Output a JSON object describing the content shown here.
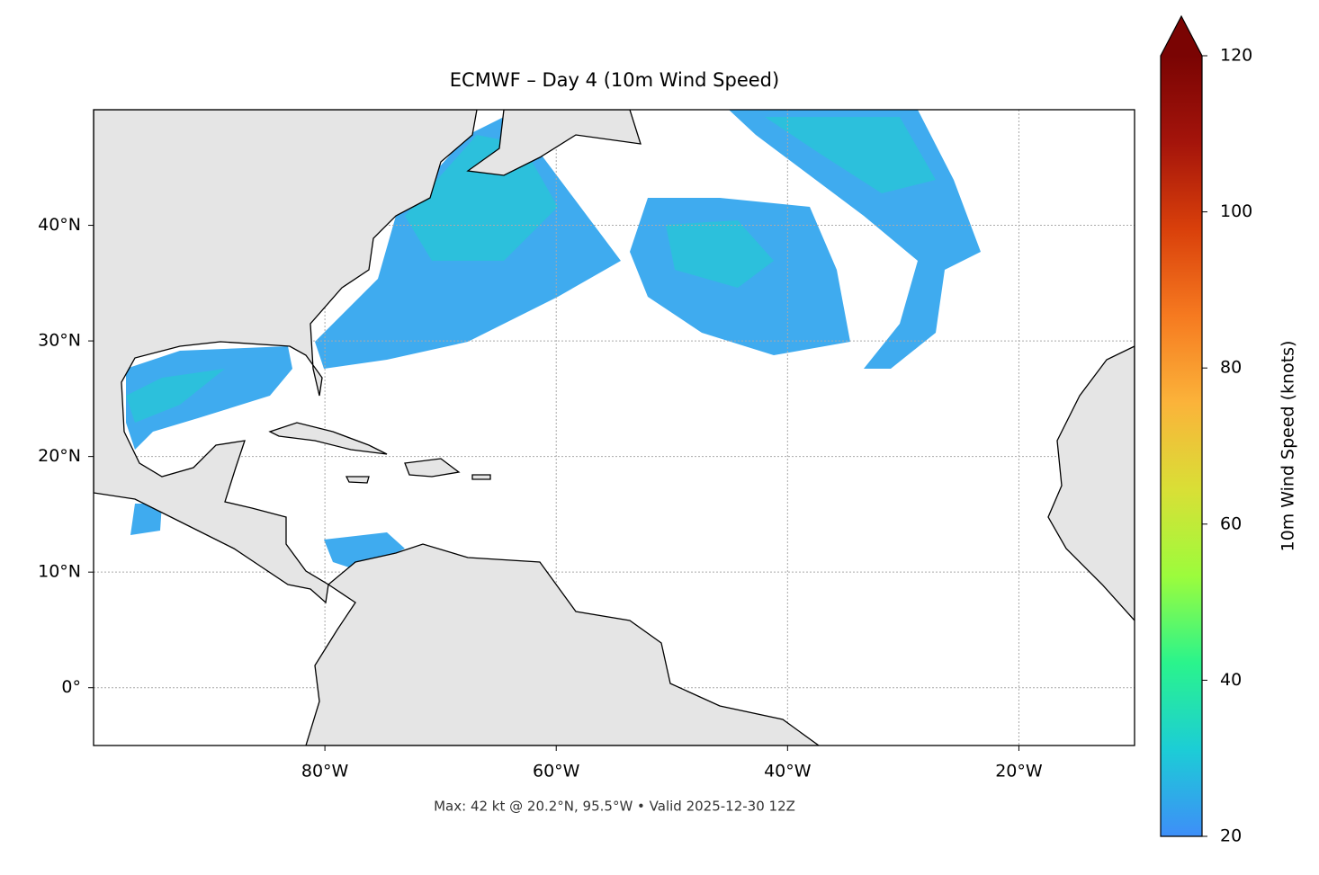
{
  "chart_data": {
    "type": "map",
    "title": "ECMWF – Day 4 (10m Wind Speed)",
    "footer": "Max: 42 kt @ 20.2°N, 95.5°W • Valid 2025-12-30 12Z",
    "xlim": [
      -100,
      -10
    ],
    "ylim": [
      -5,
      50
    ],
    "xticks": [
      {
        "value": -80,
        "label": "80°W"
      },
      {
        "value": -60,
        "label": "60°W"
      },
      {
        "value": -40,
        "label": "40°W"
      },
      {
        "value": -20,
        "label": "20°W"
      }
    ],
    "yticks": [
      {
        "value": 0,
        "label": "0°"
      },
      {
        "value": 10,
        "label": "10°N"
      },
      {
        "value": 20,
        "label": "20°N"
      },
      {
        "value": 30,
        "label": "30°N"
      },
      {
        "value": 40,
        "label": "40°N"
      }
    ],
    "grid": true,
    "colorbar": {
      "label": "10m Wind Speed (knots)",
      "lim": [
        20,
        120
      ],
      "ticks": [
        20,
        40,
        60,
        80,
        100,
        120
      ],
      "extend": "max",
      "colors": [
        "#3e8ef8",
        "#1ccdd6",
        "#2af48c",
        "#9cfc3c",
        "#d9df36",
        "#fbb33a",
        "#f67a20",
        "#d9400b",
        "#a4140b",
        "#7a0403"
      ]
    }
  }
}
